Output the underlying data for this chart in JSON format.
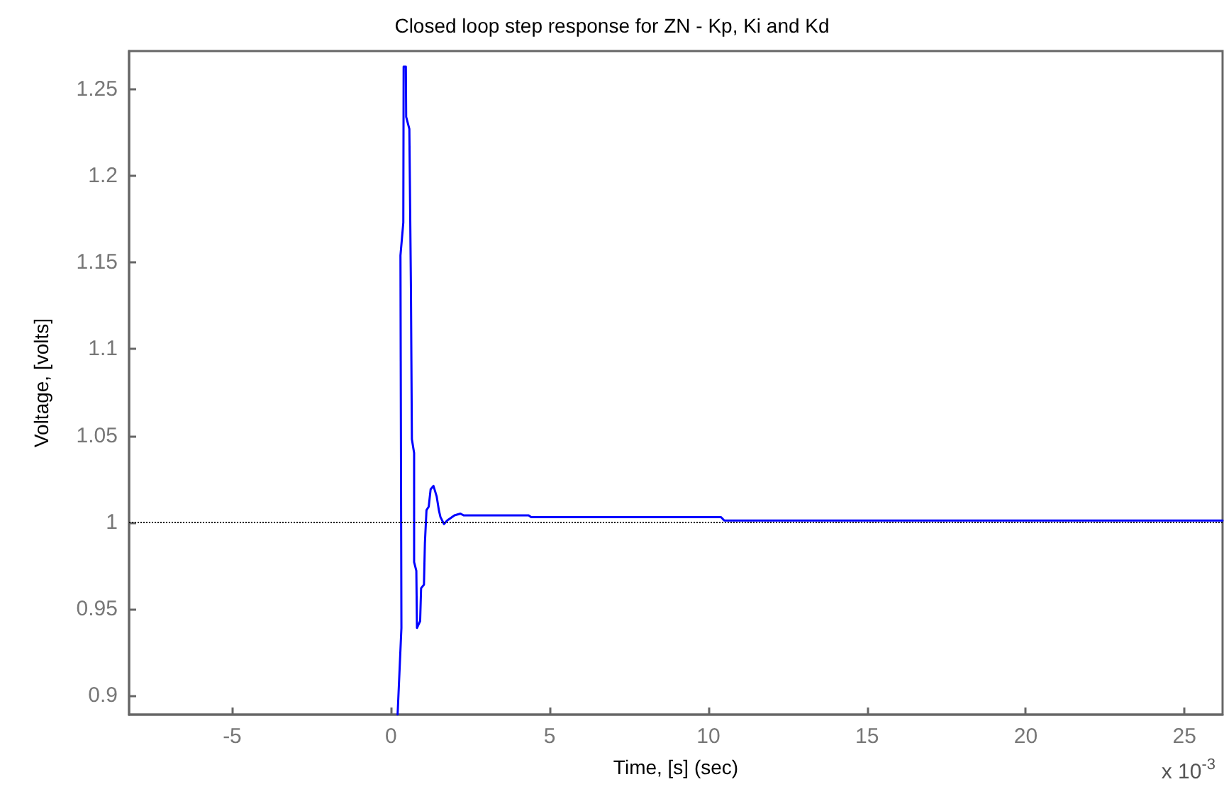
{
  "chart_data": {
    "type": "line",
    "title": "Closed loop step response for ZN - Kp, Ki and Kd",
    "xlabel": "Time, [s] (sec)",
    "ylabel": "Voltage, [volts]",
    "annotations": [
      "x 10$^{-3}$"
    ],
    "x": [
      0.21,
      0.33,
      0.3,
      0.39,
      0.4,
      0.47,
      0.48,
      0.58,
      0.63,
      0.66,
      0.73,
      0.73,
      0.8,
      0.82,
      0.92,
      0.95,
      1.04,
      1.07,
      1.12,
      1.19,
      1.25,
      1.34,
      1.44,
      1.51,
      1.56,
      1.67,
      1.77,
      2.0,
      2.19,
      2.29,
      4.34,
      4.42,
      10.4,
      10.5,
      26.2
    ],
    "series": [
      {
        "color": "#0000ff",
        "values": [
          0.889,
          0.939,
          1.154,
          1.173,
          1.263,
          1.263,
          1.234,
          1.227,
          1.135,
          1.048,
          1.04,
          0.977,
          0.972,
          0.939,
          0.943,
          0.962,
          0.964,
          0.988,
          1.007,
          1.009,
          1.019,
          1.021,
          1.015,
          1.007,
          1.003,
          0.999,
          1.001,
          1.004,
          1.005,
          1.004,
          1.004,
          1.003,
          1.003,
          1.001,
          1.001
        ]
      }
    ],
    "xlim": [
      -8.25,
      26.2
    ],
    "xticks": [
      -5,
      0,
      5,
      10,
      15,
      20,
      25
    ],
    "ylim": [
      0.889,
      1.272
    ],
    "yticks": [
      0.9,
      0.95,
      1,
      1.05,
      1.1,
      1.15,
      1.2,
      1.25
    ],
    "ref_lines": [
      {
        "axis": "y",
        "value": 1,
        "color": "#000000",
        "line_style": "dotted"
      }
    ],
    "grid": false
  }
}
